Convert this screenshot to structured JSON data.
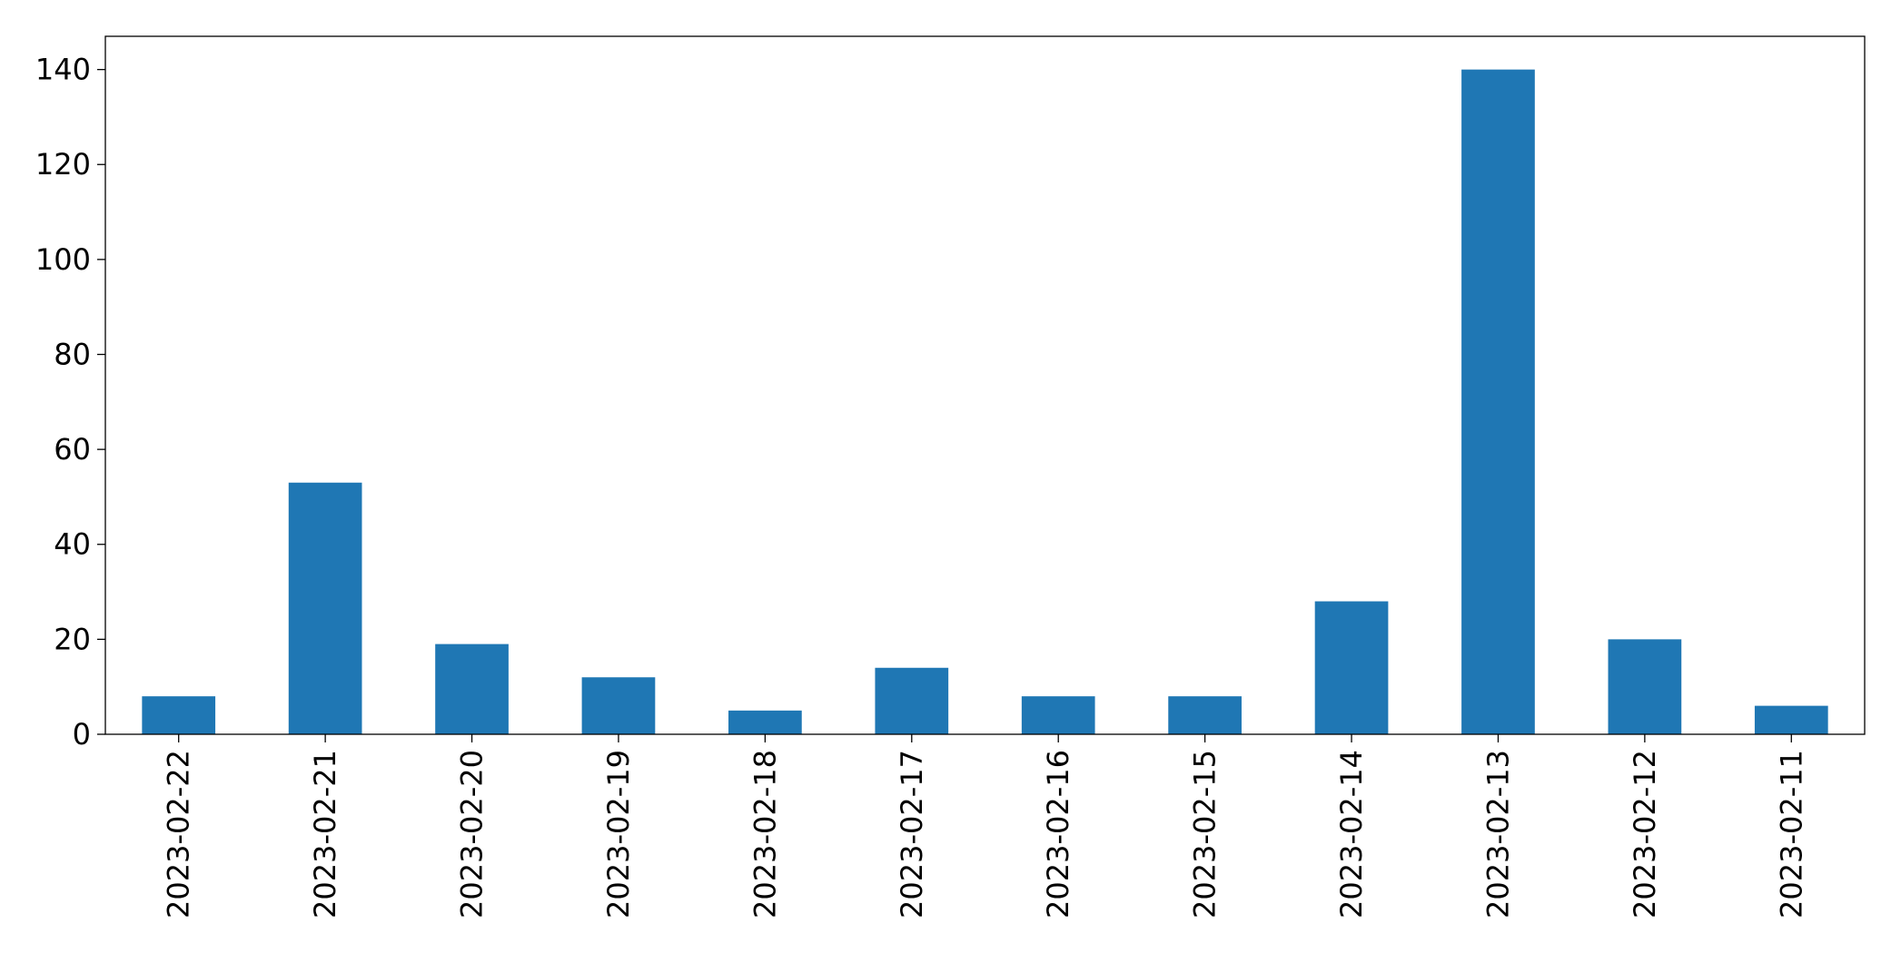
{
  "chart_data": {
    "type": "bar",
    "categories": [
      "2023-02-22",
      "2023-02-21",
      "2023-02-20",
      "2023-02-19",
      "2023-02-18",
      "2023-02-17",
      "2023-02-16",
      "2023-02-15",
      "2023-02-14",
      "2023-02-13",
      "2023-02-12",
      "2023-02-11"
    ],
    "values": [
      8,
      53,
      19,
      12,
      5,
      14,
      8,
      8,
      28,
      140,
      20,
      6
    ],
    "color": "#1f77b4",
    "ylim": [
      0,
      147
    ],
    "yticks": [
      0,
      20,
      40,
      60,
      80,
      100,
      120,
      140
    ],
    "grid": false
  }
}
